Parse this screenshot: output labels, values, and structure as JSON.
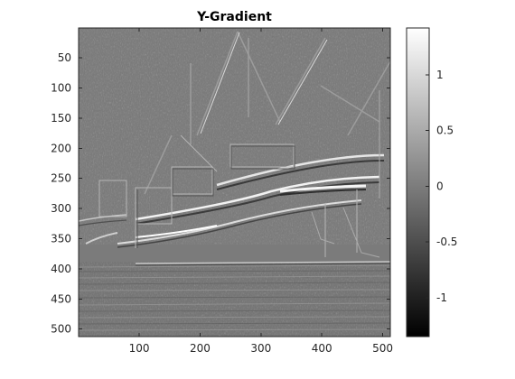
{
  "title": "Y-Gradient",
  "image": {
    "type": "heatmap",
    "description_colormap": "gray",
    "x_ticks": [
      "100",
      "200",
      "300",
      "400",
      "500"
    ],
    "x_tick_values": [
      100,
      200,
      300,
      400,
      500
    ],
    "y_ticks": [
      "50",
      "100",
      "150",
      "200",
      "250",
      "300",
      "350",
      "400",
      "450",
      "500"
    ],
    "y_tick_values": [
      50,
      100,
      150,
      200,
      250,
      300,
      350,
      400,
      450,
      500
    ],
    "x_range": [
      0.5,
      512.5
    ],
    "y_range": [
      0.5,
      512.5
    ]
  },
  "colorbar": {
    "ticks": [
      "1",
      "0.5",
      "0",
      "-0.5",
      "-1"
    ],
    "tick_values": [
      1,
      0.5,
      0,
      -0.5,
      -1
    ],
    "range": [
      -1.35,
      1.42
    ],
    "color_low": "#000000",
    "color_high": "#ffffff"
  },
  "chart_data": {
    "type": "heatmap",
    "title": "Y-Gradient",
    "xlabel": "",
    "ylabel": "",
    "xlim": [
      0.5,
      512.5
    ],
    "ylim": [
      0.5,
      512.5
    ],
    "y_direction": "reverse",
    "colormap": "gray",
    "clim": [
      -1.35,
      1.42
    ],
    "grid": false
  }
}
